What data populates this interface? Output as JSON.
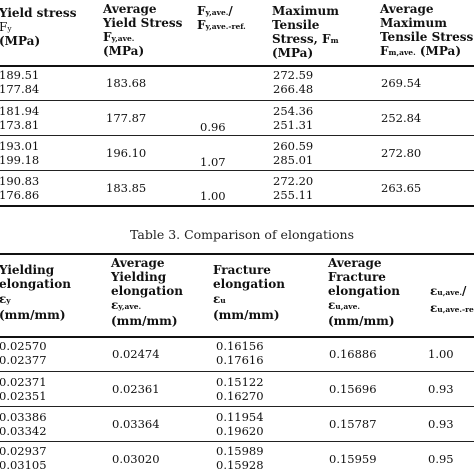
{
  "table1": {
    "headers": {
      "yield_stress": {
        "line1": "Yield stress",
        "sym": "F",
        "sym_sub": "y",
        "unit": "(MPa)"
      },
      "avg_yield": {
        "line1": "Average",
        "line2": "Yield Stress",
        "sym": "F",
        "sym_sub": "y,ave.",
        "unit": "(MPa)"
      },
      "ratio": {
        "sym1": "F",
        "sub1": "y,ave.",
        "slash": "/",
        "sym2": "F",
        "sub2": "y,ave.-ref."
      },
      "max_tensile": {
        "line1": "Maximum",
        "line2": "Tensile",
        "line3a": "Stress, F",
        "line3sub": "m",
        "unit": "(MPa)"
      },
      "avg_max_tensile": {
        "line1": "Average",
        "line2": "Maximum",
        "line3": "Tensile Stress",
        "sym": "F",
        "sym_sub": "m,ave.",
        "unit": "(MPa)"
      }
    },
    "groups": [
      {
        "ys": [
          "189.51",
          "177.84"
        ],
        "avg": "183.68",
        "ratio": "",
        "mts": [
          "272.59",
          "266.48"
        ],
        "avg_mts": "269.54"
      },
      {
        "ys": [
          "181.94",
          "173.81"
        ],
        "avg": "177.87",
        "ratio": "0.96",
        "mts": [
          "254.36",
          "251.31"
        ],
        "avg_mts": "252.84"
      },
      {
        "ys": [
          "193.01",
          "199.18"
        ],
        "avg": "196.10",
        "ratio": "1.07",
        "mts": [
          "260.59",
          "285.01"
        ],
        "avg_mts": "272.80"
      },
      {
        "ys": [
          "190.83",
          "176.86"
        ],
        "avg": "183.85",
        "ratio": "1.00",
        "mts": [
          "272.20",
          "255.11"
        ],
        "avg_mts": "263.65"
      }
    ]
  },
  "caption": "Table 3. Comparison of elongations",
  "table2": {
    "headers": {
      "yielding": {
        "line1": "Yielding",
        "line2": "elongation",
        "sym": "ε",
        "sym_sub": "y",
        "unit": "(mm/mm)"
      },
      "avg_yielding": {
        "line1": "Average",
        "line2": "Yielding",
        "line3": "elongation",
        "sym": "ε",
        "sym_sub": "y,ave.",
        "unit": "(mm/mm)"
      },
      "fracture": {
        "line1": "Fracture",
        "line2": "elongation",
        "sym": "ε",
        "sym_sub": "u",
        "unit": "(mm/mm)"
      },
      "avg_fracture": {
        "line1": "Average",
        "line2": "Fracture",
        "line3": "elongation",
        "sym": "ε",
        "sym_sub": "u,ave.",
        "unit": "(mm/mm)"
      },
      "ratio": {
        "sym1": "ε",
        "sub1": "u,ave.",
        "slash": "/",
        "sym2": "ε",
        "sub2": "u,ave.-ref."
      }
    },
    "groups": [
      {
        "ye": [
          "0.02570",
          "0.02377"
        ],
        "avg": "0.02474",
        "fe": [
          "0.16156",
          "0.17616"
        ],
        "avg_fe": "0.16886",
        "ratio": "1.00"
      },
      {
        "ye": [
          "0.02371",
          "0.02351"
        ],
        "avg": "0.02361",
        "fe": [
          "0.15122",
          "0.16270"
        ],
        "avg_fe": "0.15696",
        "ratio": "0.93"
      },
      {
        "ye": [
          "0.03386",
          "0.03342"
        ],
        "avg": "0.03364",
        "fe": [
          "0.11954",
          "0.19620"
        ],
        "avg_fe": "0.15787",
        "ratio": "0.93"
      },
      {
        "ye": [
          "0.02937",
          "0.03105"
        ],
        "avg": "0.03020",
        "fe": [
          "0.15989",
          "0.15928"
        ],
        "avg_fe": "0.15959",
        "ratio": "0.95"
      }
    ]
  }
}
